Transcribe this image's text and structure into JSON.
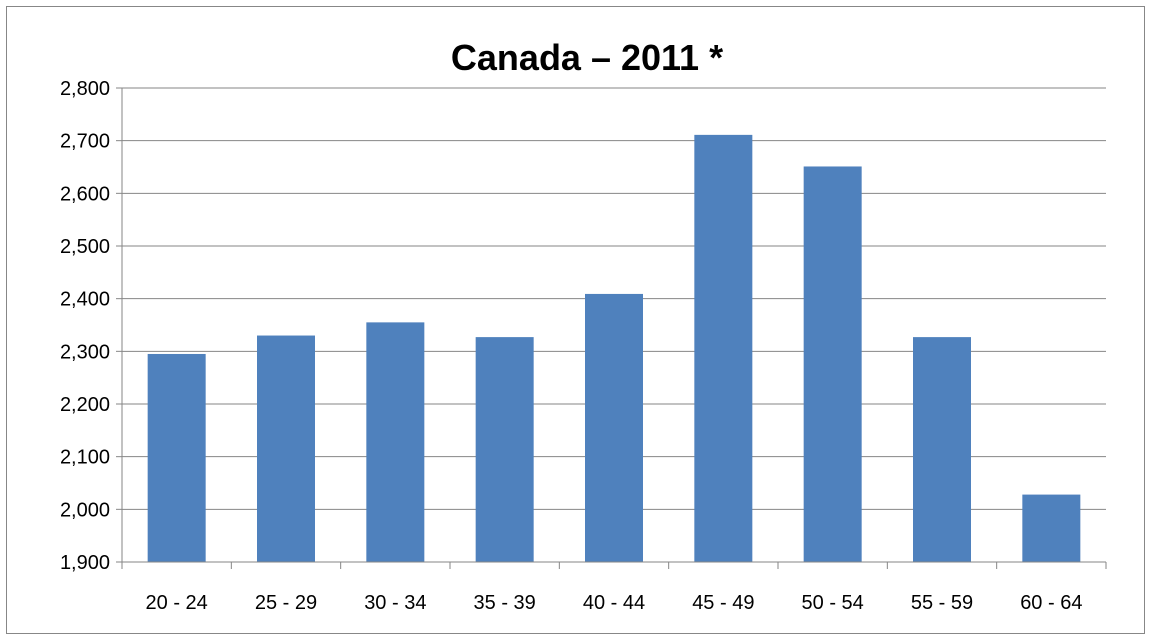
{
  "chart_data": {
    "type": "bar",
    "title": "Canada – 2011 *",
    "xlabel": "",
    "ylabel": "",
    "categories": [
      "20 - 24",
      "25 - 29",
      "30 - 34",
      "35 - 39",
      "40 - 44",
      "45 - 49",
      "50 - 54",
      "55 - 59",
      "60 - 64"
    ],
    "series": [
      {
        "values": [
          2295,
          2330,
          2355,
          2327,
          2409,
          2711,
          2651,
          2327,
          2028
        ]
      }
    ],
    "ylim": [
      1900,
      2800
    ],
    "yticks": [
      1900,
      2000,
      2100,
      2200,
      2300,
      2400,
      2500,
      2600,
      2700,
      2800
    ],
    "ytick_labels": [
      "1,900",
      "2,000",
      "2,100",
      "2,200",
      "2,300",
      "2,400",
      "2,500",
      "2,600",
      "2,700",
      "2,800"
    ],
    "grid": true,
    "legend": "none",
    "colors": {
      "bar": "#4F81BD",
      "grid": "#868686",
      "axis": "#868686"
    }
  }
}
